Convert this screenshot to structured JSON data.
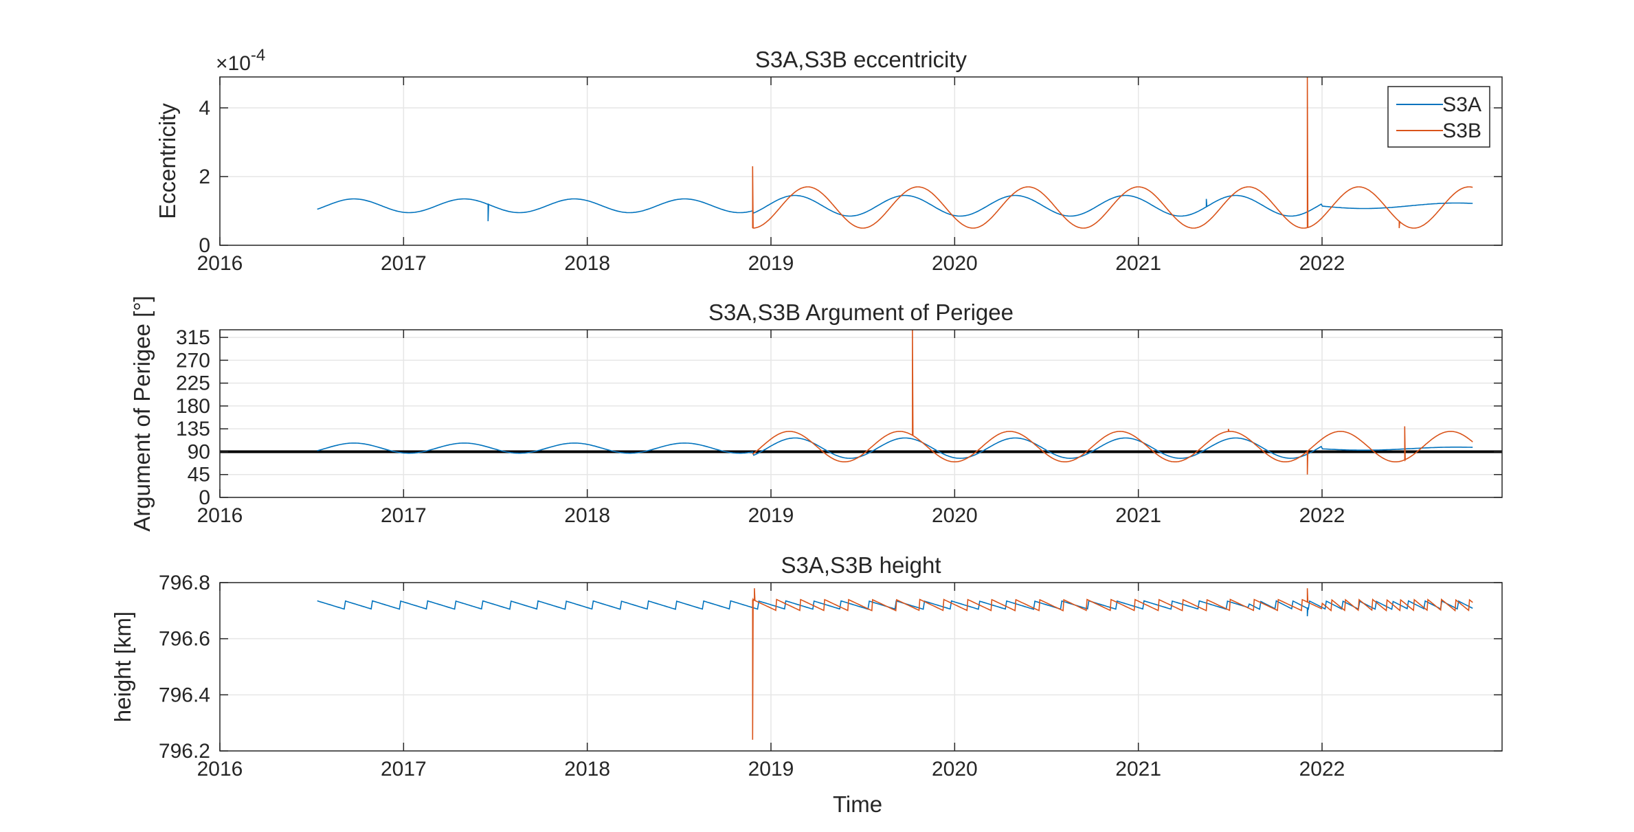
{
  "figure": {
    "xlabel": "Time",
    "colors": {
      "S3A": "#0072BD",
      "S3B": "#D95319",
      "ref_line": "#000000",
      "grid": "#e6e6e6",
      "axes": "#262626"
    }
  },
  "chart_data": [
    {
      "type": "line",
      "title": "S3A,S3B eccentricity",
      "xlabel": "",
      "ylabel": "Eccentricity",
      "y_exponent_base": "×10",
      "y_exponent": "-4",
      "xlim": [
        2016,
        2022.98
      ],
      "ylim": [
        0,
        4.9
      ],
      "xticks": [
        "2016",
        "2017",
        "2018",
        "2019",
        "2020",
        "2021",
        "2022"
      ],
      "xtick_values": [
        2016,
        2017,
        2018,
        2019,
        2020,
        2021,
        2022
      ],
      "yticks": [
        "0",
        "2",
        "4"
      ],
      "ytick_values": [
        0,
        2,
        4
      ],
      "grid": true,
      "legend": {
        "placement": "top-right",
        "entries": [
          "S3A",
          "S3B"
        ]
      },
      "series": [
        {
          "name": "S3A",
          "color": "#0072BD",
          "model": {
            "start": 2016.53,
            "end": 2022.82,
            "mean": 1.15,
            "amplitude": 0.2,
            "amplitude_late": 0.3,
            "period": 0.6,
            "phase_peak": 2016.73,
            "flat_after": 2022.0,
            "flat_mean": 1.15,
            "flat_amplitude": 0.08
          },
          "spikes": [
            {
              "x": 2017.46,
              "y": 0.7
            },
            {
              "x": 2021.37,
              "y": 1.35
            }
          ]
        },
        {
          "name": "S3B",
          "color": "#D95319",
          "model": {
            "start": 2018.9,
            "end": 2022.82,
            "mean": 1.1,
            "amplitude": 0.6,
            "period": 0.6,
            "phase_peak": 2019.2
          },
          "spikes": [
            {
              "x": 2018.9,
              "y": 2.3
            },
            {
              "x": 2021.92,
              "y": 4.9
            },
            {
              "x": 2022.42,
              "y": 0.5
            }
          ]
        }
      ]
    },
    {
      "type": "line",
      "title": "S3A,S3B Argument of Perigee",
      "xlabel": "",
      "ylabel": "Argument of Perigee [°]",
      "xlim": [
        2016,
        2022.98
      ],
      "ylim": [
        0,
        330
      ],
      "xticks": [
        "2016",
        "2017",
        "2018",
        "2019",
        "2020",
        "2021",
        "2022"
      ],
      "xtick_values": [
        2016,
        2017,
        2018,
        2019,
        2020,
        2021,
        2022
      ],
      "yticks": [
        "0",
        "45",
        "90",
        "135",
        "180",
        "225",
        "270",
        "315"
      ],
      "ytick_values": [
        0,
        45,
        90,
        135,
        180,
        225,
        270,
        315
      ],
      "grid": true,
      "reference_line": {
        "y": 90,
        "color": "#000000"
      },
      "series": [
        {
          "name": "S3A",
          "color": "#0072BD",
          "model": {
            "start": 2016.53,
            "end": 2022.82,
            "mean": 97,
            "amplitude": 10,
            "amplitude_late": 20,
            "period": 0.6,
            "phase_peak": 2016.73,
            "flat_after": 2022.0,
            "flat_mean": 96,
            "flat_amplitude": 3
          },
          "spikes": []
        },
        {
          "name": "S3B",
          "color": "#D95319",
          "model": {
            "start": 2018.9,
            "end": 2022.82,
            "mean": 100,
            "amplitude": 30,
            "period": 0.6,
            "phase_peak": 2019.1
          },
          "spikes": [
            {
              "x": 2019.77,
              "y": 330
            },
            {
              "x": 2021.92,
              "y": 45
            },
            {
              "x": 2021.49,
              "y": 135
            },
            {
              "x": 2022.45,
              "y": 140
            }
          ]
        }
      ]
    },
    {
      "type": "line",
      "title": "S3A,S3B height",
      "xlabel": "Time",
      "ylabel": "height [km]",
      "xlim": [
        2016,
        2022.98
      ],
      "ylim": [
        796.2,
        796.8
      ],
      "xticks": [
        "2016",
        "2017",
        "2018",
        "2019",
        "2020",
        "2021",
        "2022"
      ],
      "xtick_values": [
        2016,
        2017,
        2018,
        2019,
        2020,
        2021,
        2022
      ],
      "yticks": [
        "796.2",
        "796.4",
        "796.6",
        "796.8"
      ],
      "ytick_values": [
        796.2,
        796.4,
        796.6,
        796.8
      ],
      "grid": true,
      "series": [
        {
          "name": "S3A",
          "color": "#0072BD",
          "model": {
            "start": 2016.53,
            "end": 2022.82,
            "low": 796.705,
            "high": 796.735,
            "drift": 0.0,
            "sawtooth_period": 0.15,
            "sawtooth_period_late": 0.09,
            "late_after": 2021.6
          },
          "spikes": [
            {
              "x": 2021.92,
              "y": 796.68
            }
          ]
        },
        {
          "name": "S3B",
          "color": "#D95319",
          "model": {
            "start": 2018.9,
            "end": 2022.82,
            "low": 796.7,
            "high": 796.74,
            "drift": 0.0,
            "sawtooth_period": 0.13,
            "sawtooth_period_late": 0.075,
            "late_after": 2022.0
          },
          "spikes": [
            {
              "x": 2018.9,
              "y": 796.24
            },
            {
              "x": 2018.91,
              "y": 796.78
            },
            {
              "x": 2021.92,
              "y": 796.78
            }
          ]
        }
      ]
    }
  ]
}
